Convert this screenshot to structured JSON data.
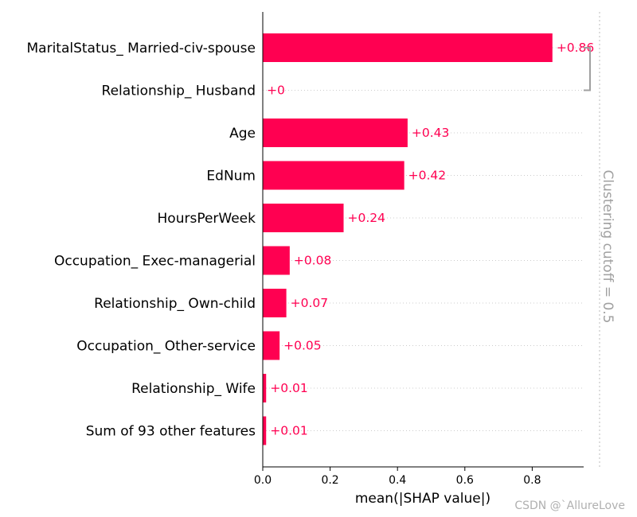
{
  "colors": {
    "bar": "#ff0051",
    "value_text": "#ff0051",
    "grid": "#cccccc",
    "axis": "#000000",
    "cutoff": "#a0a0a0"
  },
  "chart_data": {
    "type": "bar",
    "orientation": "horizontal",
    "categories": [
      "MaritalStatus_ Married-civ-spouse",
      "Relationship_ Husband",
      "Age",
      "EdNum",
      "HoursPerWeek",
      "Occupation_ Exec-managerial",
      "Relationship_ Own-child",
      "Occupation_ Other-service",
      "Relationship_ Wife",
      "Sum of 93 other features"
    ],
    "values": [
      0.86,
      0.0,
      0.43,
      0.42,
      0.24,
      0.08,
      0.07,
      0.05,
      0.01,
      0.01
    ],
    "value_labels": [
      "+0.86",
      "+0",
      "+0.43",
      "+0.42",
      "+0.24",
      "+0.08",
      "+0.07",
      "+0.05",
      "+0.01",
      "+0.01"
    ],
    "xlabel": "mean(|SHAP value|)",
    "ylabel": "",
    "xlim": [
      0,
      0.955
    ],
    "xticks": [
      0.0,
      0.2,
      0.4,
      0.6,
      0.8
    ],
    "xtick_labels": [
      "0.0",
      "0.2",
      "0.4",
      "0.6",
      "0.8"
    ],
    "grid": "dotted horizontal per row",
    "cluster_bracket": {
      "from_row": 0,
      "to_row": 1
    },
    "cutoff_label": "Clustering cutoff = 0.5"
  },
  "watermark": "CSDN @`AllureLove"
}
